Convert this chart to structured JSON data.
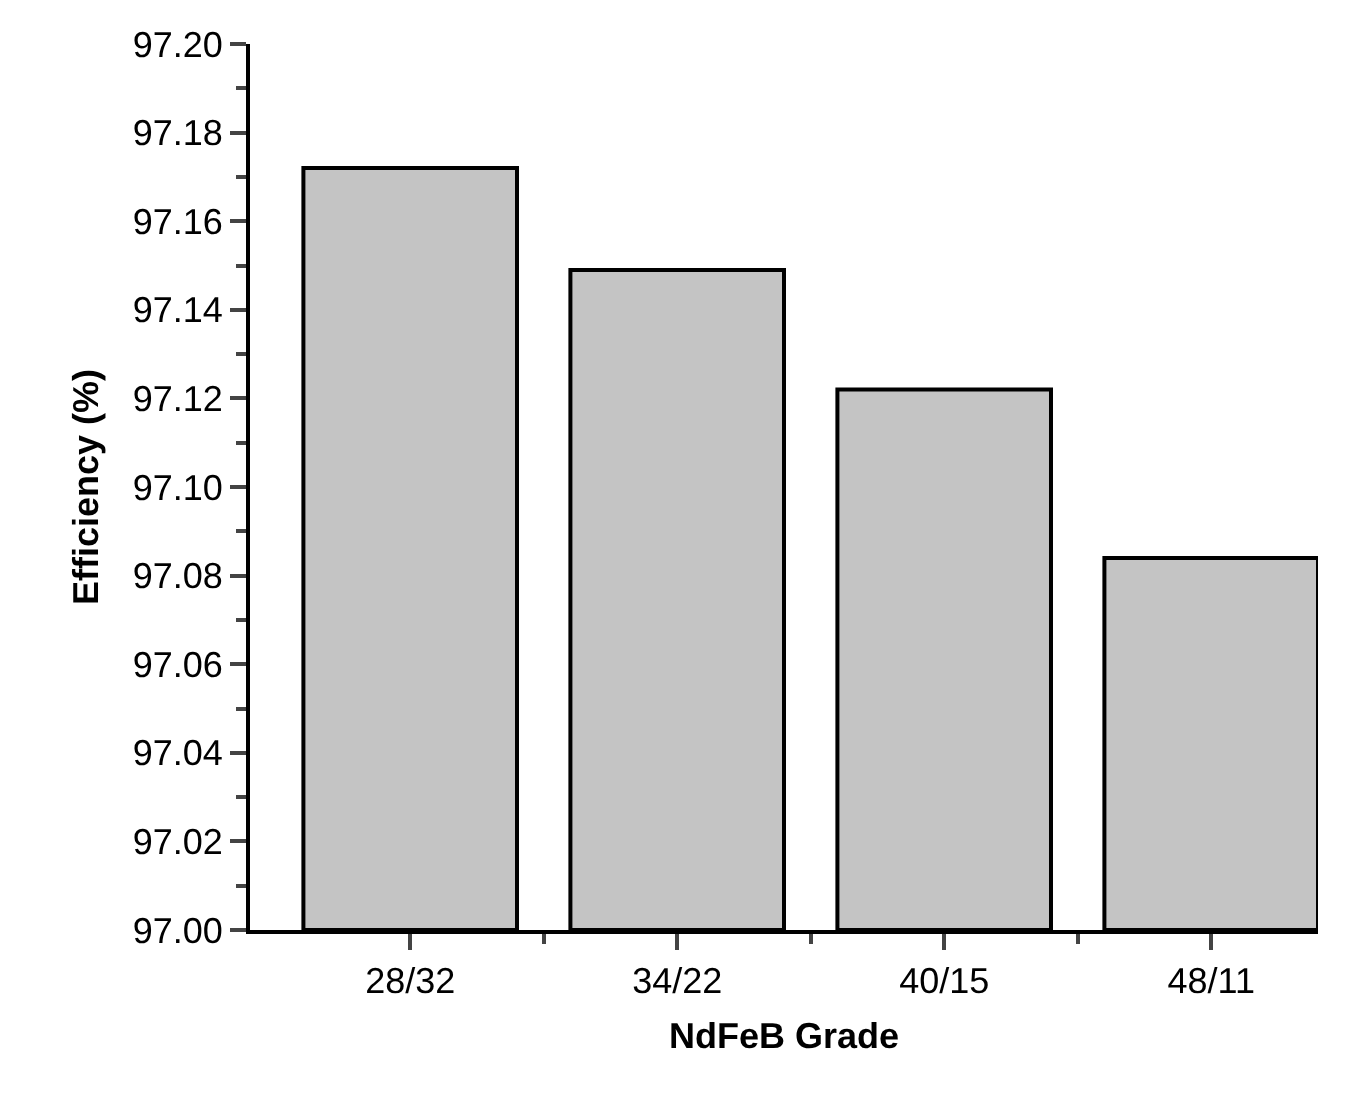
{
  "chart_data": {
    "type": "bar",
    "xlabel": "NdFeB Grade",
    "ylabel": "Efficiency (%)",
    "categories": [
      "28/32",
      "34/22",
      "40/15",
      "48/11"
    ],
    "values": [
      97.172,
      97.149,
      97.122,
      97.084
    ],
    "color": "#c4c4c4",
    "ylim": [
      97.0,
      97.2
    ],
    "yticks": [
      {
        "value": 97.0,
        "label": "97.00"
      },
      {
        "value": 97.02,
        "label": "97.02"
      },
      {
        "value": 97.04,
        "label": "97.04"
      },
      {
        "value": 97.06,
        "label": "97.06"
      },
      {
        "value": 97.08,
        "label": "97.08"
      },
      {
        "value": 97.1,
        "label": "97.10"
      },
      {
        "value": 97.12,
        "label": "97.12"
      },
      {
        "value": 97.14,
        "label": "97.14"
      },
      {
        "value": 97.16,
        "label": "97.16"
      },
      {
        "value": 97.18,
        "label": "97.18"
      },
      {
        "value": 97.2,
        "label": "97.20"
      }
    ]
  }
}
